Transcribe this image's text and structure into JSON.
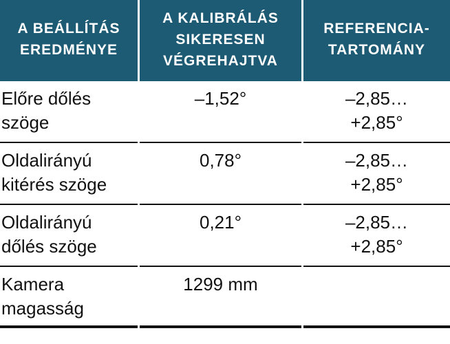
{
  "table": {
    "header": [
      "A BEÁLLÍTÁS EREDMÉNYE",
      "A KALIBRÁLÁS SIKERESEN VÉGREHAJTVA",
      "REFERENCIA-TARTOMÁNY"
    ],
    "rows": [
      [
        "Előre dőlés szöge",
        "–1,52°",
        "–2,85… +2,85°"
      ],
      [
        "Oldalirányú kitérés szöge",
        "0,78°",
        "–2,85… +2,85°"
      ],
      [
        "Oldalirányú dőlés szöge",
        "0,21°",
        "–2,85… +2,85°"
      ],
      [
        "Kamera magasság",
        "1299 mm"
      ]
    ]
  }
}
